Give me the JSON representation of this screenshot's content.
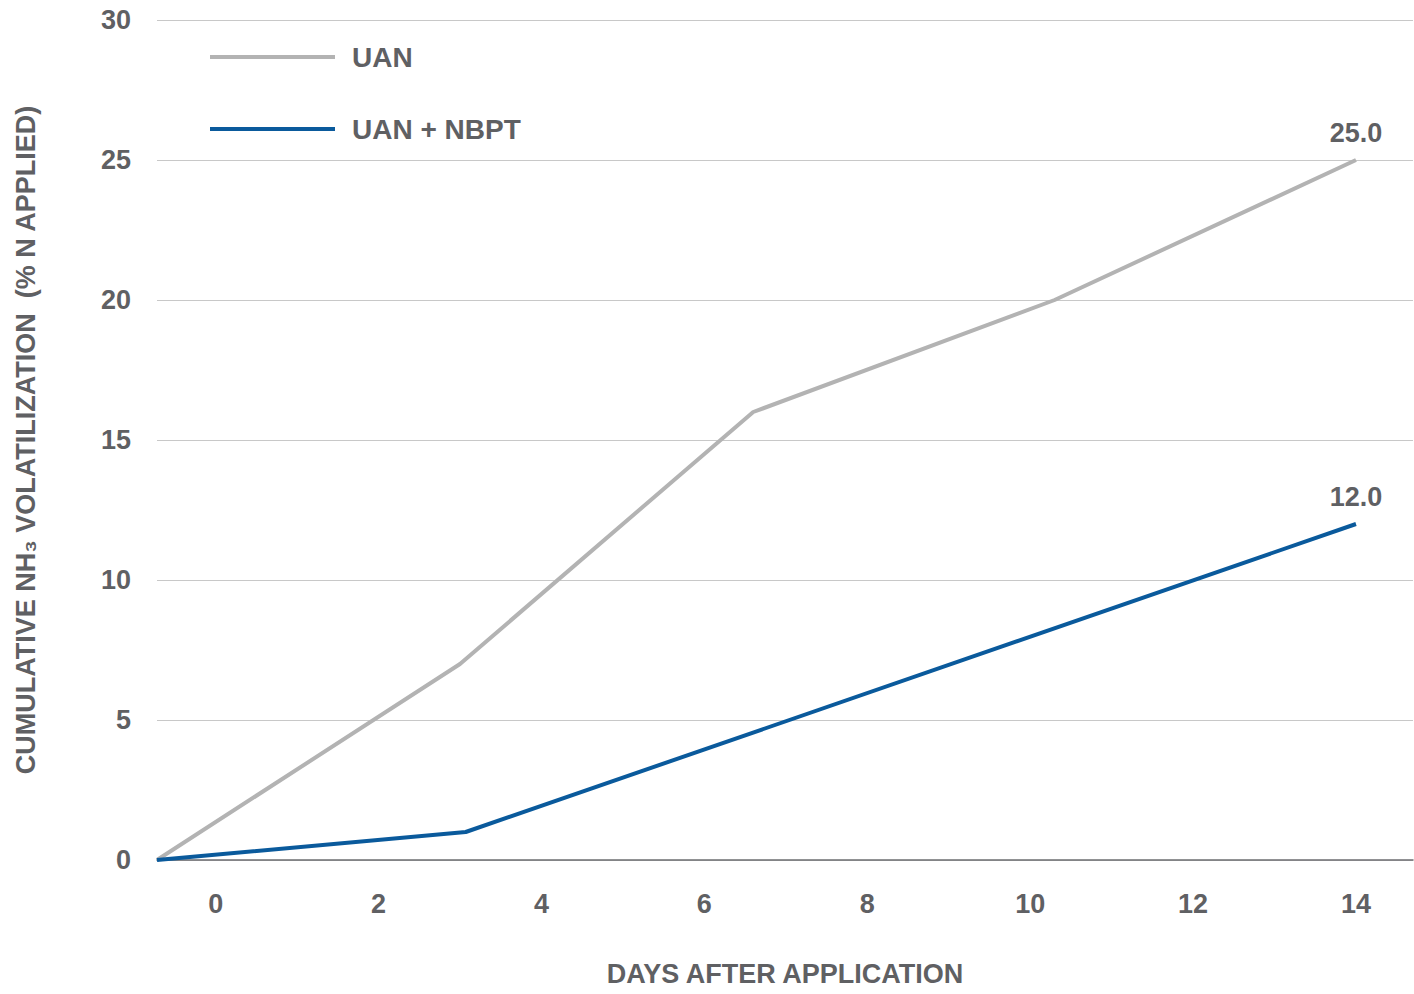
{
  "chart_data": {
    "type": "line",
    "x_label": "DAYS AFTER APPLICATION",
    "y_label": "CUMULATIVE NH₃ VOLATILIZATION  (% N APPLIED)",
    "series": [
      {
        "name": "UAN",
        "color": "#b3b3b3",
        "x": [
          -0.72,
          3,
          6.6,
          10.3,
          14
        ],
        "values": [
          0,
          7,
          16,
          20,
          25
        ],
        "value_labels": [
          null,
          null,
          null,
          null,
          "25.0"
        ]
      },
      {
        "name": "UAN + NBPT",
        "color": "#0a5a9c",
        "x": [
          -0.72,
          3.07,
          14
        ],
        "values": [
          0,
          1,
          12
        ],
        "value_labels": [
          null,
          null,
          "12.0"
        ]
      }
    ],
    "xlim": [
      -0.72,
      14.7
    ],
    "xticks": [
      0,
      2,
      4,
      6,
      8,
      10,
      12,
      14
    ],
    "ylim": [
      0,
      30
    ],
    "yticks": [
      0,
      5,
      10,
      15,
      20,
      25,
      30
    ],
    "grid": true,
    "legend": "upper left",
    "data_labels": true
  }
}
